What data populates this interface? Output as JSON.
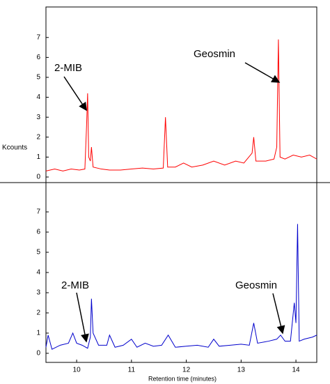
{
  "chart_data": [
    {
      "type": "line",
      "ylabel": "Kcounts",
      "color": "#ff0000",
      "annotations": [
        "2-MIB",
        "Geosmin"
      ],
      "x": [
        9.44,
        9.6,
        9.75,
        9.9,
        10.05,
        10.15,
        10.18,
        10.2,
        10.22,
        10.25,
        10.27,
        10.3,
        10.45,
        10.6,
        10.8,
        11.0,
        11.2,
        11.4,
        11.58,
        11.62,
        11.66,
        11.8,
        11.95,
        12.1,
        12.3,
        12.5,
        12.7,
        12.9,
        13.05,
        13.2,
        13.23,
        13.27,
        13.45,
        13.6,
        13.65,
        13.68,
        13.71,
        13.8,
        13.95,
        14.1,
        14.25,
        14.38
      ],
      "values": [
        0.3,
        0.4,
        0.3,
        0.4,
        0.35,
        0.4,
        2.5,
        4.2,
        1.0,
        0.8,
        1.5,
        0.5,
        0.4,
        0.35,
        0.35,
        0.4,
        0.45,
        0.4,
        0.45,
        3.0,
        0.5,
        0.5,
        0.7,
        0.5,
        0.6,
        0.8,
        0.6,
        0.8,
        0.7,
        1.2,
        2.0,
        0.8,
        0.8,
        0.9,
        1.5,
        6.9,
        1.0,
        0.9,
        1.1,
        1.0,
        1.1,
        0.9
      ],
      "xlim": [
        9.44,
        14.38
      ],
      "ylim": [
        -0.28,
        8.53
      ],
      "yticks": [
        0,
        1,
        2,
        3,
        4,
        5,
        6,
        7
      ]
    },
    {
      "type": "line",
      "xlabel": "Retention time (minutes)",
      "color": "#0000cc",
      "annotations": [
        "2-MIB",
        "Geosmin"
      ],
      "x": [
        9.44,
        9.48,
        9.55,
        9.7,
        9.85,
        9.93,
        10.0,
        10.1,
        10.2,
        10.25,
        10.27,
        10.3,
        10.4,
        10.55,
        10.6,
        10.7,
        10.85,
        11.0,
        11.1,
        11.25,
        11.4,
        11.55,
        11.67,
        11.8,
        12.0,
        12.2,
        12.4,
        12.5,
        12.6,
        12.8,
        13.0,
        13.15,
        13.23,
        13.3,
        13.5,
        13.65,
        13.72,
        13.8,
        13.9,
        13.97,
        14.0,
        14.03,
        14.06,
        14.15,
        14.3,
        14.38
      ],
      "values": [
        0.3,
        0.9,
        0.2,
        0.4,
        0.5,
        1.0,
        0.5,
        0.4,
        0.25,
        0.8,
        2.7,
        1.0,
        0.4,
        0.4,
        0.9,
        0.3,
        0.4,
        0.7,
        0.3,
        0.5,
        0.35,
        0.4,
        0.9,
        0.3,
        0.35,
        0.4,
        0.3,
        0.7,
        0.35,
        0.4,
        0.45,
        0.4,
        1.5,
        0.5,
        0.6,
        0.7,
        0.9,
        0.6,
        0.6,
        2.5,
        1.5,
        6.4,
        0.6,
        0.7,
        0.8,
        0.9
      ],
      "xlim": [
        9.44,
        14.38
      ],
      "xticks": [
        10,
        11,
        12,
        13,
        14
      ],
      "ylim": [
        -0.45,
        8.45
      ],
      "yticks": [
        0,
        1,
        2,
        3,
        4,
        5,
        6,
        7
      ]
    }
  ]
}
